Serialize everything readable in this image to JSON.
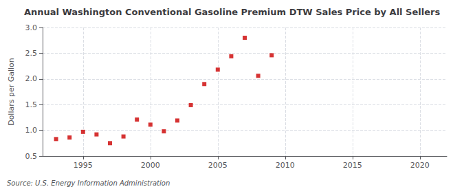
{
  "chart_data": {
    "type": "scatter",
    "title": "Annual Washington Conventional Gasoline Premium DTW Sales Price by All Sellers",
    "ylabel": "Dollars per Gallon",
    "annotation": "Source: U.S. Energy Information Administration",
    "x": [
      1993,
      1994,
      1995,
      1996,
      1997,
      1998,
      1999,
      2000,
      2001,
      2002,
      2003,
      2004,
      2005,
      2006,
      2007,
      2008,
      2009
    ],
    "values": [
      0.83,
      0.86,
      0.97,
      0.92,
      0.75,
      0.88,
      1.21,
      1.11,
      0.98,
      1.19,
      1.49,
      1.9,
      2.18,
      2.44,
      2.8,
      2.06,
      2.46
    ],
    "color": "#cc0000",
    "marker": "square",
    "xlim": [
      1992,
      2022
    ],
    "xticks": [
      1995,
      2000,
      2005,
      2010,
      2015,
      2020
    ],
    "ylim": [
      0.5,
      3.0
    ],
    "yticks": [
      0.5,
      {
        "value": 1.0,
        "label": "1.0"
      },
      1.5,
      {
        "value": 2.0,
        "label": "2.0"
      },
      2.5,
      {
        "value": 3.0,
        "label": "3.0"
      }
    ],
    "grid": true
  }
}
